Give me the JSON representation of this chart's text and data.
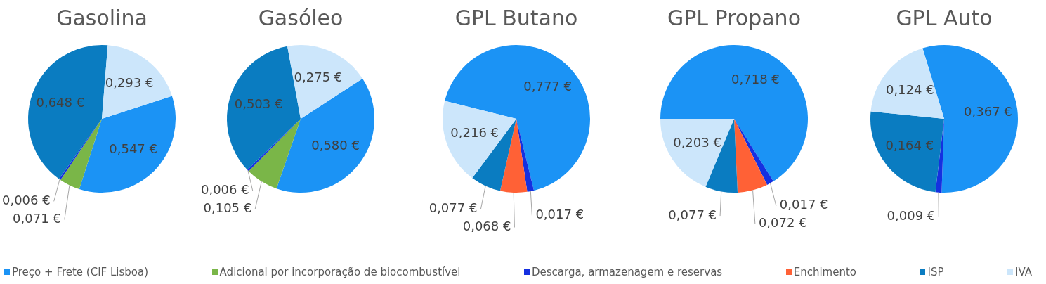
{
  "chart_data": {
    "type": "pie",
    "legend": "bottom",
    "categories": [
      "Preço + Frete (CIF Lisboa)",
      "Adicional por incorporação de biocombustível",
      "Descarga, armazenagem e reservas",
      "Enchimento",
      "ISP",
      "IVA"
    ],
    "colors": [
      "#1b93f5",
      "#7ab648",
      "#1530e0",
      "#ff6136",
      "#0a7cc1",
      "#cce6fb"
    ],
    "series": [
      {
        "name": "Gasolina",
        "values": [
          0.547,
          0.071,
          0.006,
          null,
          0.648,
          0.293
        ],
        "value_labels": [
          "0,547 €",
          "0,071 €",
          "0,006 €",
          null,
          "0,648 €",
          "0,293 €"
        ]
      },
      {
        "name": "Gasóleo",
        "values": [
          0.58,
          0.105,
          0.006,
          null,
          0.503,
          0.275
        ],
        "value_labels": [
          "0,580 €",
          "0,105 €",
          "0,006 €",
          null,
          "0,503 €",
          "0,275 €"
        ]
      },
      {
        "name": "GPL Butano",
        "values": [
          0.777,
          null,
          0.017,
          0.068,
          0.077,
          0.216
        ],
        "value_labels": [
          "0,777 €",
          null,
          "0,017 €",
          "0,068 €",
          "0,077 €",
          "0,216 €"
        ]
      },
      {
        "name": "GPL Propano",
        "values": [
          0.718,
          null,
          0.017,
          0.072,
          0.077,
          0.203
        ],
        "value_labels": [
          "0,718 €",
          null,
          "0,017 €",
          "0,072 €",
          "0,077 €",
          "0,203 €"
        ]
      },
      {
        "name": "GPL Auto",
        "values": [
          0.367,
          null,
          0.009,
          null,
          0.164,
          0.124
        ],
        "value_labels": [
          "0,367 €",
          null,
          "0,009 €",
          null,
          "0,164 €",
          "0,124 €"
        ]
      }
    ]
  }
}
